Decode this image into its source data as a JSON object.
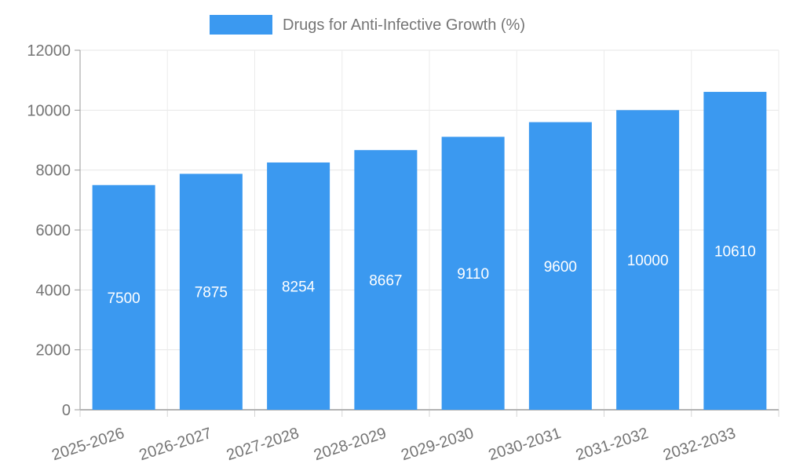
{
  "chart_data": {
    "type": "bar",
    "title": "Drugs for Anti-Infective Growth (%)",
    "categories": [
      "2025-2026",
      "2026-2027",
      "2027-2028",
      "2028-2029",
      "2029-2030",
      "2030-2031",
      "2031-2032",
      "2032-2033"
    ],
    "values": [
      7500,
      7875,
      8254,
      8667,
      9110,
      9600,
      10000,
      10610
    ],
    "bar_labels": [
      "7500",
      "7875",
      "8254",
      "8667",
      "9110",
      "9600",
      "10000",
      "10610"
    ],
    "xlabel": "",
    "ylabel": "",
    "ylim": [
      0,
      12000
    ],
    "y_ticks": [
      0,
      2000,
      4000,
      6000,
      8000,
      10000,
      12000
    ],
    "y_tick_labels": [
      "0",
      "2000",
      "4000",
      "6000",
      "8000",
      "10000",
      "12000"
    ],
    "grid": "on",
    "legend_position": "top",
    "colors": {
      "bar": "#3B99F0",
      "bar_label_text": "#FFFFFF",
      "axis_text": "#757575",
      "legend_text": "#757575",
      "grid_horizontal": "#E6E6E6",
      "grid_vertical": "#EBEBEB",
      "y_axis_line": "#9A9A9A",
      "x_baseline": "#B3B3B3",
      "y_tick_mark": "#9A9A9A",
      "x_tick_mark": "#D5D5D5",
      "background": "#FFFFFF"
    }
  }
}
